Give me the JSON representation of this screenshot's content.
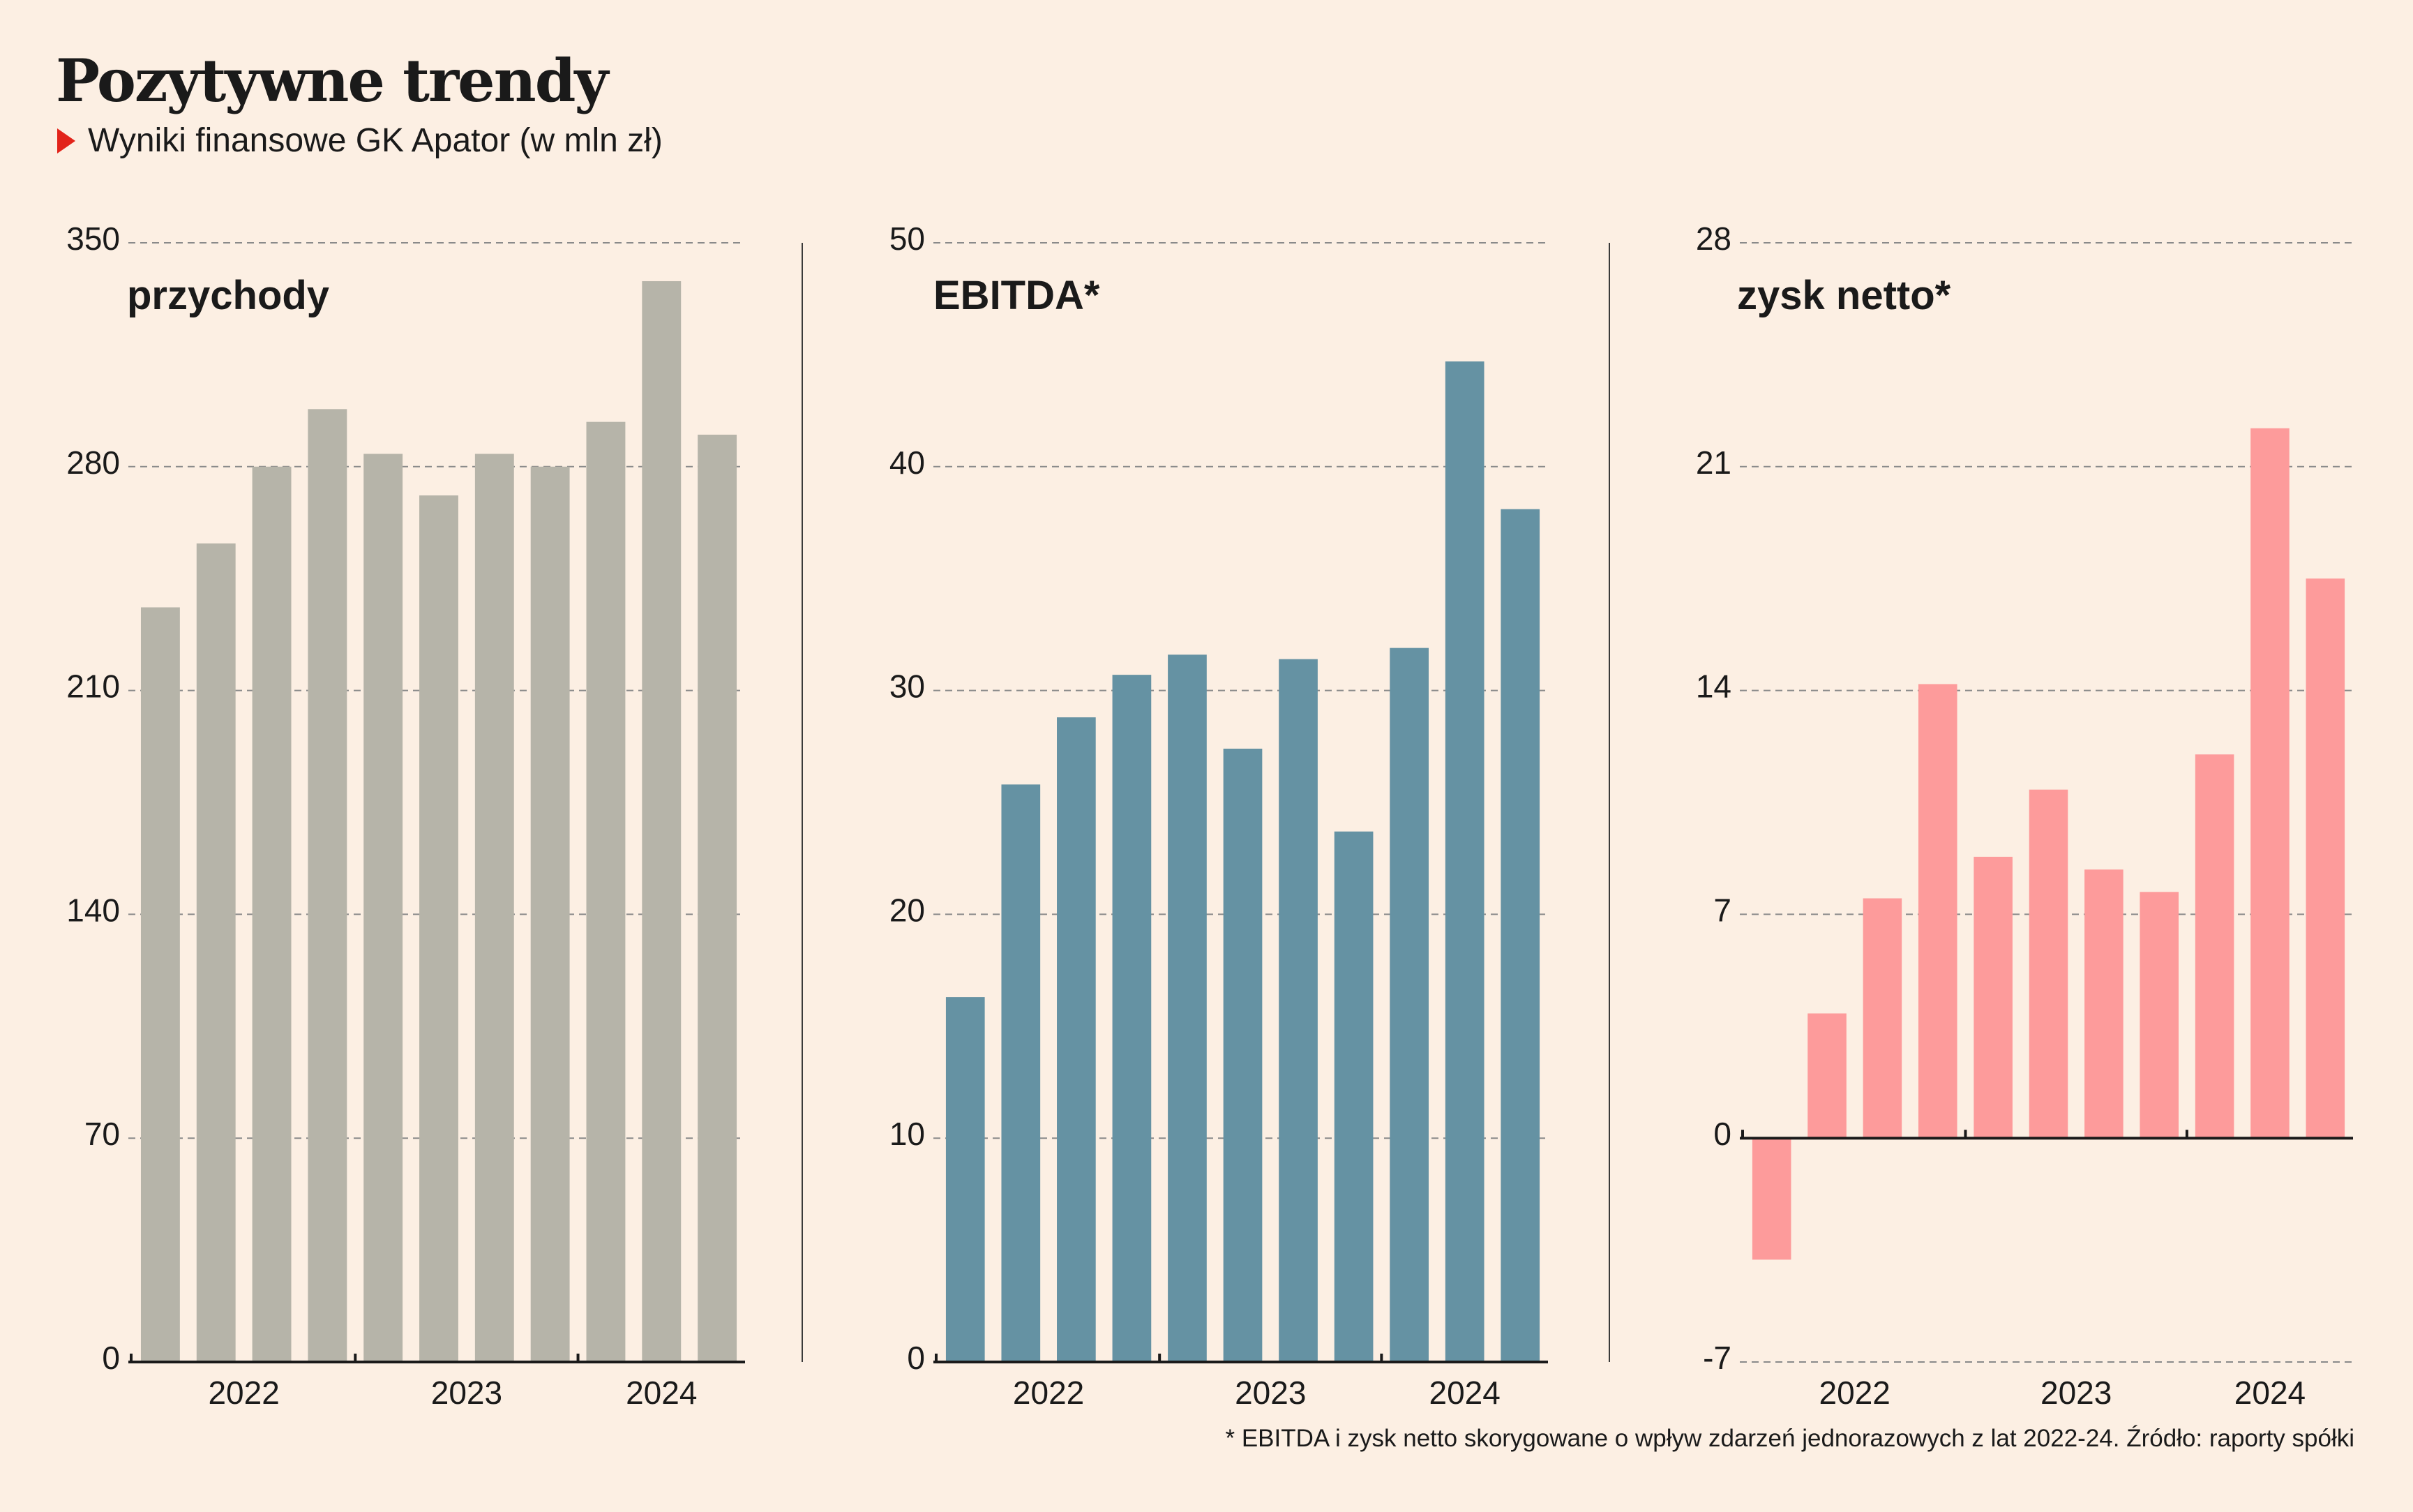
{
  "title": "Pozytywne trendy",
  "subtitle": "Wyniki finansowe GK Apator (w mln zł)",
  "footnote": "* EBITDA i zysk netto skorygowane o wpływ zdarzeń jednorazowych z lat 2022-24. Źródło: raporty spółki",
  "colors": {
    "background": "#fcefe3",
    "marker": "#e2231a",
    "grid": "#8a8a8a"
  },
  "chart_data": [
    {
      "type": "bar",
      "title": "przychody",
      "color": "#b6b4a9",
      "ylim": [
        0,
        350
      ],
      "yticks": [
        0,
        70,
        140,
        210,
        280,
        350
      ],
      "year_labels": [
        "2022",
        "2023",
        "2024"
      ],
      "year_ticks_after": [
        3,
        7
      ],
      "values": [
        236,
        256,
        280,
        298,
        284,
        271,
        284,
        280,
        294,
        338,
        290
      ]
    },
    {
      "type": "bar",
      "title": "EBITDA*",
      "color": "#6592a3",
      "ylim": [
        0,
        50
      ],
      "yticks": [
        0,
        10,
        20,
        30,
        40,
        50
      ],
      "year_labels": [
        "2022",
        "2023",
        "2024"
      ],
      "year_ticks_after": [
        3,
        7
      ],
      "values": [
        16.3,
        25.8,
        28.8,
        30.7,
        31.6,
        27.4,
        31.4,
        23.7,
        31.9,
        44.7,
        38.1
      ]
    },
    {
      "type": "bar",
      "title": "zysk netto*",
      "color": "#fd9b9b",
      "ylim": [
        -7,
        28
      ],
      "yticks": [
        -7,
        0,
        7,
        14,
        21,
        28
      ],
      "year_labels": [
        "2022",
        "2023",
        "2024"
      ],
      "year_ticks_after": [
        3,
        7
      ],
      "values": [
        -3.8,
        3.9,
        7.5,
        14.2,
        8.8,
        10.9,
        8.4,
        7.7,
        12.0,
        22.2,
        17.5
      ]
    }
  ]
}
